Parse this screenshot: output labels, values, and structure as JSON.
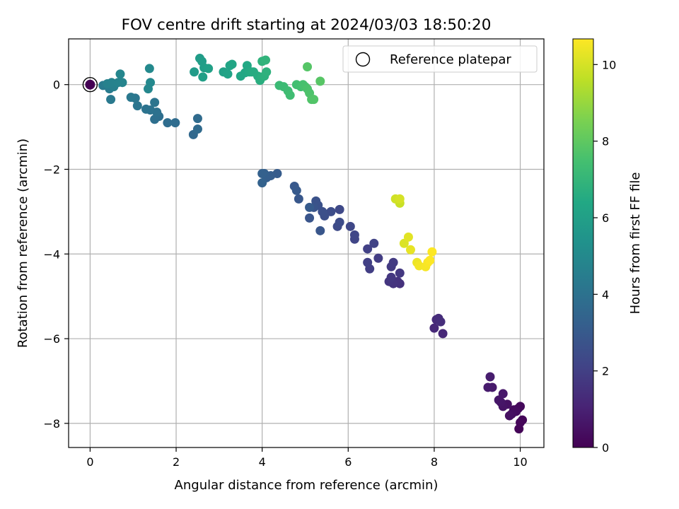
{
  "chart_data": {
    "type": "scatter",
    "title": "FOV centre drift starting at 2024/03/03 18:50:20",
    "xlabel": "Angular distance from reference (arcmin)",
    "ylabel": "Rotation from reference (arcmin)",
    "xlim": [
      -0.5,
      10.55
    ],
    "ylim": [
      -8.57,
      1.08
    ],
    "xticks": [
      0,
      2,
      4,
      6,
      8,
      10
    ],
    "yticks": [
      -8,
      -6,
      -4,
      -2,
      0
    ],
    "grid": true,
    "legend": {
      "placement": "top-right",
      "entries": [
        "Reference platepar"
      ]
    },
    "reference_point": {
      "x": 0,
      "y": 0,
      "color_value": 0
    },
    "colorbar": {
      "label": "Hours from first FF file",
      "colormap": "viridis",
      "range": [
        0,
        10.67
      ],
      "ticks": [
        0,
        2,
        4,
        6,
        8,
        10
      ]
    },
    "points": [
      [
        9.97,
        -8.13,
        0.1
      ],
      [
        10.05,
        -7.92,
        0.12
      ],
      [
        10.0,
        -7.98,
        0.15
      ],
      [
        9.95,
        -7.65,
        0.2
      ],
      [
        10.0,
        -7.6,
        0.25
      ],
      [
        9.85,
        -7.68,
        0.3
      ],
      [
        9.9,
        -7.72,
        0.35
      ],
      [
        9.8,
        -7.78,
        0.4
      ],
      [
        9.75,
        -7.82,
        0.45
      ],
      [
        9.7,
        -7.55,
        0.5
      ],
      [
        9.6,
        -7.6,
        0.55
      ],
      [
        9.55,
        -7.5,
        0.6
      ],
      [
        9.5,
        -7.45,
        0.65
      ],
      [
        9.6,
        -7.3,
        0.7
      ],
      [
        9.35,
        -7.15,
        0.75
      ],
      [
        9.25,
        -7.15,
        0.8
      ],
      [
        9.3,
        -6.9,
        0.85
      ],
      [
        8.2,
        -5.88,
        1.2
      ],
      [
        8.0,
        -5.75,
        1.25
      ],
      [
        8.05,
        -5.55,
        1.3
      ],
      [
        8.1,
        -5.52,
        1.35
      ],
      [
        8.15,
        -5.6,
        1.4
      ],
      [
        7.2,
        -4.7,
        1.5
      ],
      [
        7.15,
        -4.65,
        1.55
      ],
      [
        7.05,
        -4.7,
        1.6
      ],
      [
        6.95,
        -4.65,
        1.65
      ],
      [
        7.0,
        -4.55,
        1.7
      ],
      [
        7.2,
        -4.45,
        1.75
      ],
      [
        7.0,
        -4.3,
        1.8
      ],
      [
        7.05,
        -4.2,
        1.85
      ],
      [
        6.7,
        -4.1,
        1.9
      ],
      [
        6.5,
        -4.35,
        1.95
      ],
      [
        6.45,
        -4.2,
        2.0
      ],
      [
        6.45,
        -3.88,
        2.05
      ],
      [
        6.6,
        -3.75,
        2.1
      ],
      [
        6.15,
        -3.65,
        2.2
      ],
      [
        6.15,
        -3.55,
        2.25
      ],
      [
        6.05,
        -3.35,
        2.3
      ],
      [
        5.8,
        -2.95,
        2.35
      ],
      [
        5.75,
        -3.35,
        2.4
      ],
      [
        5.8,
        -3.25,
        2.45
      ],
      [
        5.6,
        -3.0,
        2.5
      ],
      [
        5.45,
        -3.1,
        2.55
      ],
      [
        5.4,
        -3.0,
        2.6
      ],
      [
        5.3,
        -2.85,
        2.65
      ],
      [
        5.25,
        -2.75,
        2.7
      ],
      [
        5.2,
        -2.9,
        2.75
      ],
      [
        5.1,
        -3.15,
        2.8
      ],
      [
        5.35,
        -3.45,
        2.85
      ],
      [
        4.85,
        -2.7,
        2.9
      ],
      [
        4.75,
        -2.4,
        2.95
      ],
      [
        4.8,
        -2.5,
        3.0
      ],
      [
        5.1,
        -2.9,
        3.05
      ],
      [
        4.35,
        -2.1,
        3.1
      ],
      [
        4.2,
        -2.15,
        3.15
      ],
      [
        4.1,
        -2.2,
        3.2
      ],
      [
        4.05,
        -2.1,
        3.25
      ],
      [
        4.0,
        -2.1,
        3.3
      ],
      [
        4.0,
        -2.32,
        3.35
      ],
      [
        2.4,
        -1.18,
        3.6
      ],
      [
        2.5,
        -1.05,
        3.65
      ],
      [
        2.5,
        -0.8,
        3.7
      ],
      [
        1.98,
        -0.9,
        3.75
      ],
      [
        1.8,
        -0.9,
        3.8
      ],
      [
        1.6,
        -0.75,
        3.85
      ],
      [
        1.5,
        -0.82,
        3.9
      ],
      [
        1.55,
        -0.65,
        3.95
      ],
      [
        1.4,
        -0.6,
        4.0
      ],
      [
        1.3,
        -0.58,
        4.05
      ],
      [
        1.5,
        -0.42,
        4.1
      ],
      [
        1.1,
        -0.5,
        4.15
      ],
      [
        1.05,
        -0.32,
        4.2
      ],
      [
        0.95,
        -0.3,
        4.25
      ],
      [
        0.48,
        -0.35,
        4.3
      ],
      [
        0.3,
        -0.02,
        4.35
      ],
      [
        0.45,
        -0.1,
        4.4
      ],
      [
        0.55,
        -0.05,
        4.6
      ],
      [
        0.4,
        0.02,
        4.65
      ],
      [
        0.5,
        0.05,
        4.7
      ],
      [
        0.65,
        0.05,
        4.75
      ],
      [
        0.75,
        0.05,
        4.8
      ],
      [
        0.7,
        0.25,
        4.85
      ],
      [
        1.35,
        -0.1,
        4.9
      ],
      [
        1.4,
        0.05,
        4.95
      ],
      [
        1.38,
        0.38,
        5.0
      ],
      [
        2.42,
        0.3,
        5.8
      ],
      [
        2.55,
        0.62,
        5.85
      ],
      [
        2.6,
        0.55,
        5.9
      ],
      [
        2.65,
        0.4,
        5.95
      ],
      [
        2.62,
        0.18,
        6.0
      ],
      [
        2.75,
        0.38,
        6.05
      ],
      [
        3.1,
        0.3,
        6.1
      ],
      [
        3.2,
        0.25,
        6.15
      ],
      [
        3.25,
        0.45,
        6.2
      ],
      [
        3.3,
        0.48,
        6.25
      ],
      [
        3.5,
        0.2,
        6.3
      ],
      [
        3.6,
        0.28,
        6.35
      ],
      [
        3.65,
        0.45,
        6.4
      ],
      [
        3.7,
        0.3,
        6.45
      ],
      [
        3.75,
        0.3,
        6.5
      ],
      [
        3.8,
        0.3,
        6.55
      ],
      [
        3.9,
        0.2,
        6.6
      ],
      [
        3.95,
        0.1,
        6.65
      ],
      [
        4.0,
        0.18,
        6.7
      ],
      [
        4.05,
        0.2,
        6.75
      ],
      [
        4.1,
        0.3,
        6.8
      ],
      [
        4.0,
        0.55,
        6.85
      ],
      [
        4.08,
        0.58,
        6.9
      ],
      [
        4.4,
        -0.02,
        7.2
      ],
      [
        4.5,
        -0.05,
        7.25
      ],
      [
        4.6,
        -0.15,
        7.3
      ],
      [
        4.65,
        -0.25,
        7.35
      ],
      [
        4.8,
        0.0,
        7.4
      ],
      [
        4.9,
        -0.05,
        7.45
      ],
      [
        4.95,
        0.0,
        7.5
      ],
      [
        5.0,
        -0.05,
        7.55
      ],
      [
        5.05,
        -0.1,
        7.6
      ],
      [
        5.1,
        -0.2,
        7.65
      ],
      [
        5.15,
        -0.35,
        7.7
      ],
      [
        5.2,
        -0.35,
        7.75
      ],
      [
        5.05,
        0.42,
        7.8
      ],
      [
        5.35,
        0.08,
        7.85
      ],
      [
        7.2,
        -2.8,
        9.8
      ],
      [
        7.1,
        -2.7,
        9.9
      ],
      [
        7.2,
        -2.7,
        10.0
      ],
      [
        7.3,
        -3.75,
        10.1
      ],
      [
        7.4,
        -3.6,
        10.2
      ],
      [
        7.45,
        -3.9,
        10.3
      ],
      [
        7.6,
        -4.2,
        10.4
      ],
      [
        7.65,
        -4.28,
        10.5
      ],
      [
        7.8,
        -4.3,
        10.55
      ],
      [
        7.85,
        -4.2,
        10.6
      ],
      [
        7.9,
        -4.15,
        10.65
      ],
      [
        7.95,
        -3.95,
        10.65
      ]
    ]
  }
}
